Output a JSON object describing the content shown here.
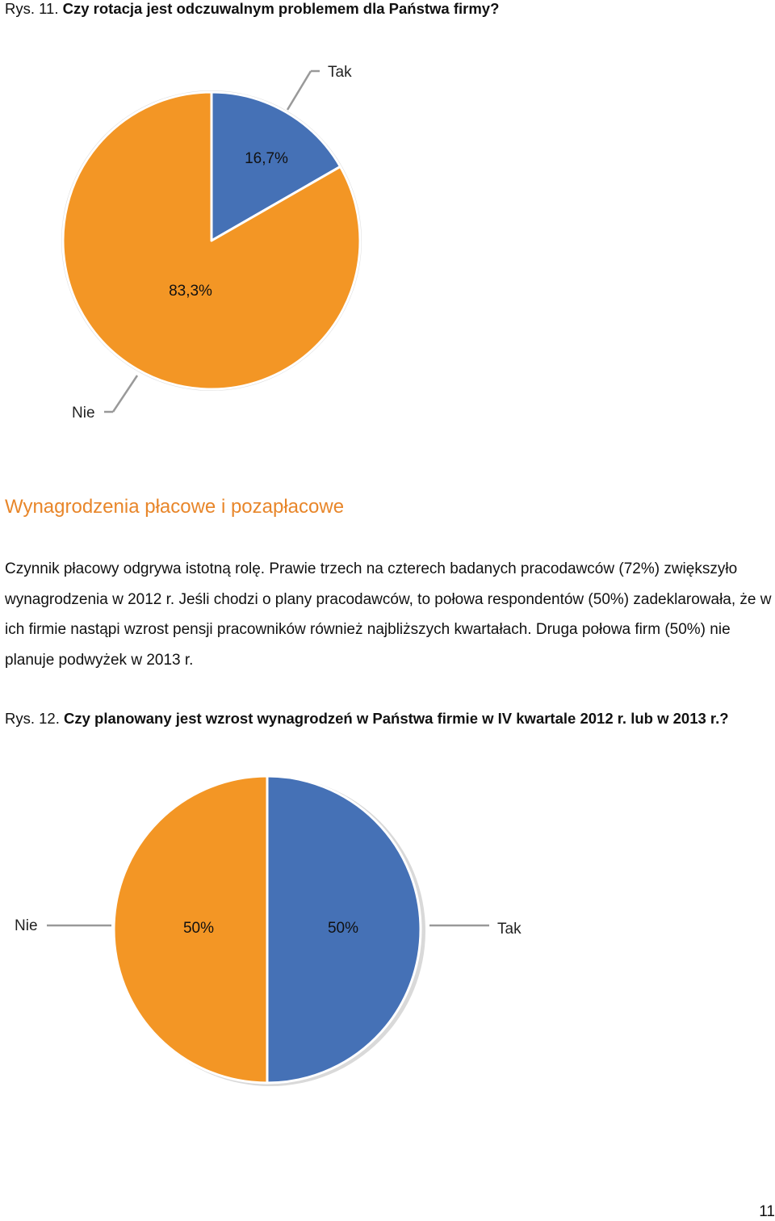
{
  "fig11": {
    "caption_prefix": "Rys. 11.",
    "caption_title": "Czy rotacja jest odczuwalnym problemem dla Państwa firmy?"
  },
  "section": {
    "heading": "Wynagrodzenia płacowe i pozapłacowe",
    "paragraph": "Czynnik płacowy odgrywa istotną rolę. Prawie trzech na czterech badanych pracodawców (72%) zwiększyło wynagrodzenia w 2012 r. Jeśli chodzi o plany pracodawców, to połowa respondentów (50%) zadeklarowała, że w ich firmie nastąpi wzrost pensji pracowników również najbliższych kwartałach. Druga połowa firm (50%) nie planuje podwyżek w 2013 r."
  },
  "fig12": {
    "caption_prefix": "Rys. 12.",
    "caption_title": "Czy planowany jest wzrost wynagrodzeń w Państwa firmie w IV kwartale 2012 r. lub w 2013 r.?"
  },
  "page_number": "11",
  "chart_data": [
    {
      "type": "pie",
      "title": "Czy rotacja jest odczuwalnym problemem dla Państwa firmy?",
      "categories": [
        "Tak",
        "Nie"
      ],
      "values": [
        16.7,
        83.3
      ],
      "value_labels": [
        "16,7%",
        "83,3%"
      ],
      "colors": [
        "#4571B6",
        "#F39625"
      ],
      "legend": "callout labels"
    },
    {
      "type": "pie",
      "title": "Czy planowany jest wzrost wynagrodzeń w Państwa firmie w IV kwartale 2012 r. lub w 2013 r.?",
      "categories": [
        "Tak",
        "Nie"
      ],
      "values": [
        50,
        50
      ],
      "value_labels": [
        "50%",
        "50%"
      ],
      "colors": [
        "#4571B6",
        "#F39625"
      ],
      "legend": "callout labels"
    }
  ]
}
